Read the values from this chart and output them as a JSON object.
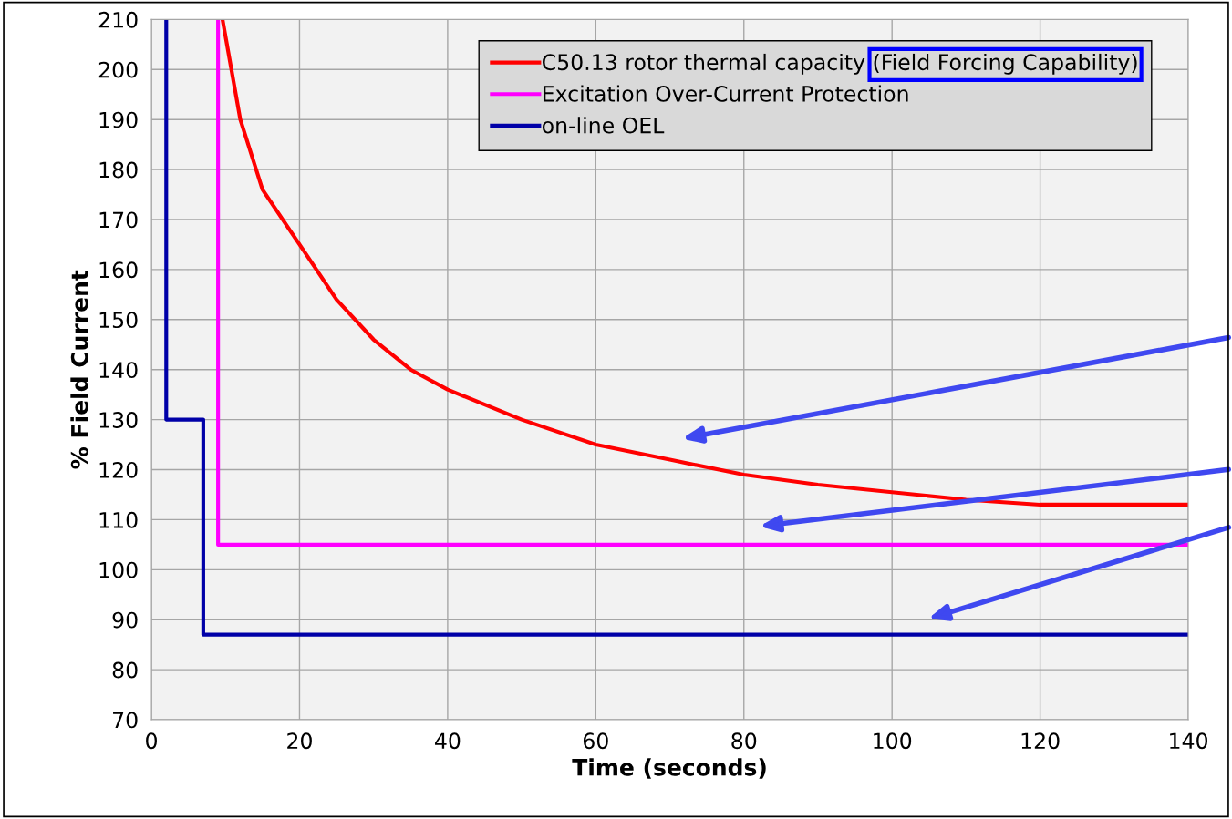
{
  "chart_data": {
    "type": "line",
    "xlabel": "Time (seconds)",
    "ylabel": "% Field Current",
    "xlim": [
      0,
      140
    ],
    "xticks": [
      0,
      20,
      40,
      60,
      80,
      100,
      120,
      140
    ],
    "ylim": [
      70,
      210
    ],
    "yticks": [
      70,
      80,
      90,
      100,
      110,
      120,
      130,
      140,
      150,
      160,
      170,
      180,
      190,
      200,
      210
    ],
    "grid": true,
    "legend": "top right",
    "marker": "none",
    "line_style": "solid",
    "series": [
      {
        "name": "C50.13 rotor thermal capacity (Field Forcing Capability)",
        "color": "#ff0000",
        "x": [
          9.6,
          12,
          15,
          20,
          25,
          30,
          35,
          40,
          50,
          60,
          70,
          80,
          90,
          100,
          110,
          120,
          140
        ],
        "values": [
          210,
          190,
          176,
          165,
          154,
          146,
          140,
          136,
          130,
          125,
          122,
          119,
          117,
          115.5,
          114,
          113,
          113
        ]
      },
      {
        "name": "Excitation Over-Current Protection",
        "color": "#ff00ff",
        "x": [
          9,
          9,
          140
        ],
        "values": [
          210,
          105,
          105
        ]
      },
      {
        "name": "on-line OEL",
        "color": "#0000a8",
        "x": [
          2,
          2,
          7,
          7,
          140
        ],
        "values": [
          210,
          130,
          130,
          87,
          87
        ]
      }
    ]
  }
}
